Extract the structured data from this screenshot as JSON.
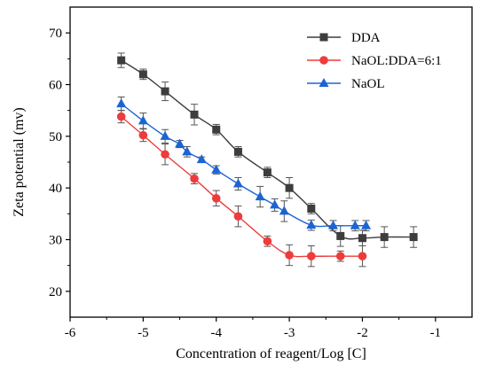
{
  "chart_data": {
    "type": "line",
    "title": "",
    "xlabel": "Concentration of reagent/Log [C]",
    "ylabel": "Zeta potential (mv)",
    "xlim": [
      -6,
      -0.5
    ],
    "ylim": [
      15,
      75
    ],
    "x_ticks": [
      -6,
      -5,
      -4,
      -3,
      -2,
      -1
    ],
    "y_ticks": [
      20,
      30,
      40,
      50,
      60,
      70
    ],
    "x_tick_labels": [
      "-6",
      "-5",
      "-4",
      "-3",
      "-2",
      "-1"
    ],
    "y_tick_labels": [
      "20",
      "30",
      "40",
      "50",
      "60",
      "70"
    ],
    "grid": false,
    "legend_position": "top-right",
    "series": [
      {
        "name": "DDA",
        "color": "#3d3d3d",
        "marker": "square",
        "x": [
          -5.3,
          -5.0,
          -4.7,
          -4.3,
          -4.0,
          -3.7,
          -3.3,
          -3.0,
          -2.7,
          -2.3,
          -2.0,
          -1.7,
          -1.3
        ],
        "y": [
          64.7,
          62.0,
          58.7,
          54.2,
          51.3,
          47.0,
          43.0,
          40.0,
          36.0,
          30.7,
          30.3,
          30.5,
          30.5
        ],
        "err": [
          1.4,
          1.0,
          1.8,
          2.0,
          1.0,
          1.0,
          1.0,
          2.0,
          1.0,
          2.0,
          1.5,
          2.0,
          2.0
        ]
      },
      {
        "name": "NaOL:DDA=6:1",
        "color": "#ee3b3b",
        "marker": "circle",
        "x": [
          -5.3,
          -5.0,
          -4.7,
          -4.3,
          -4.0,
          -3.7,
          -3.3,
          -3.0,
          -2.7,
          -2.3,
          -2.0
        ],
        "y": [
          53.8,
          50.2,
          46.5,
          41.8,
          38.0,
          34.5,
          29.7,
          27.0,
          26.8,
          26.8,
          26.8
        ],
        "err": [
          1.2,
          1.2,
          2.0,
          1.0,
          1.5,
          2.0,
          1.0,
          2.0,
          2.0,
          1.0,
          2.0
        ]
      },
      {
        "name": "NaOL",
        "color": "#1b64d3",
        "marker": "triangle",
        "x": [
          -5.3,
          -5.0,
          -4.7,
          -4.5,
          -4.4,
          -4.2,
          -4.0,
          -3.7,
          -3.4,
          -3.2,
          -3.07,
          -2.7,
          -2.4,
          -2.1,
          -1.95
        ],
        "y": [
          56.3,
          53.0,
          50.0,
          48.5,
          47.0,
          45.5,
          43.5,
          40.8,
          38.3,
          36.7,
          35.5,
          32.8,
          32.7,
          32.7,
          32.7
        ],
        "err": [
          1.3,
          1.5,
          1.3,
          0.7,
          1.0,
          0.5,
          0.8,
          1.2,
          2.0,
          1.2,
          2.0,
          1.0,
          1.0,
          1.0,
          1.0
        ]
      }
    ]
  }
}
